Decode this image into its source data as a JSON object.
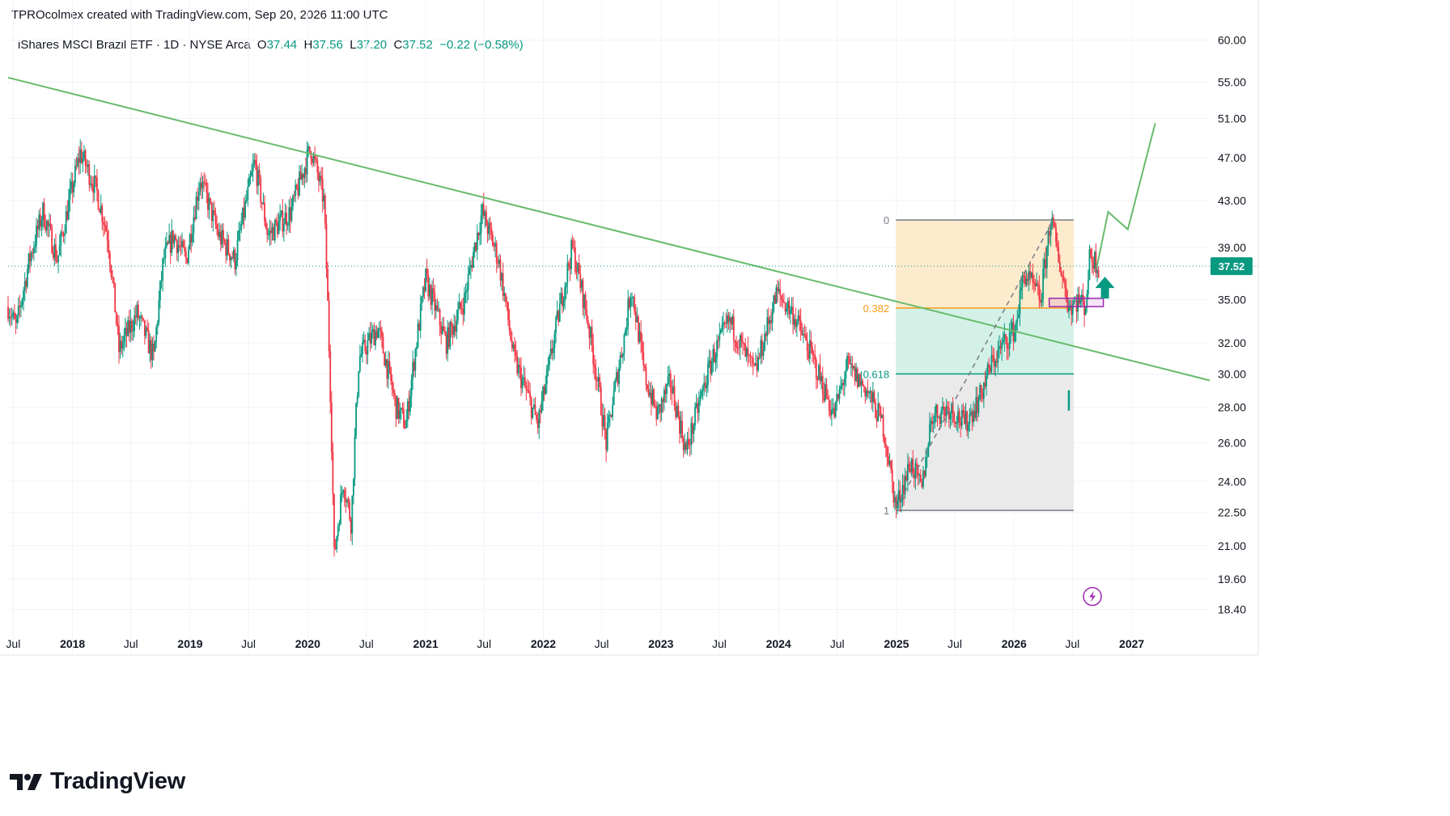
{
  "header": {
    "created_by": "TPROcolmex created with TradingView.com, Sep 20, 2026 11:00 UTC"
  },
  "legend": {
    "symbol": "iShares MSCI Brazil ETF · 1D · NYSE Arca",
    "o_label": "O",
    "open": "37.44",
    "h_label": "H",
    "high": "37.56",
    "l_label": "L",
    "low": "37.20",
    "c_label": "C",
    "close": "37.52",
    "change": "−0.22 (−0.58%)"
  },
  "footer": {
    "brand": "TradingView"
  },
  "colors": {
    "up": "#089981",
    "down": "#f23645",
    "trendline": "#66bb6a",
    "fib_top_fill": "#fde8c4",
    "fib_mid_fill": "#cdeee4",
    "fib_bottom_fill": "#e6e6e6",
    "fib_0382": "#f89a17",
    "fib_0618": "#089981",
    "purple": "#9c27b0"
  },
  "chart_data": {
    "type": "candlestick",
    "y_scale": "log",
    "ylim": [
      17.6,
      62
    ],
    "xlim": [
      "2017-06-15",
      "2027-08-31"
    ],
    "y_ticks": [
      "60.00",
      "55.00",
      "51.00",
      "47.00",
      "43.00",
      "39.00",
      "35.00",
      "32.00",
      "30.00",
      "28.00",
      "26.00",
      "24.00",
      "22.50",
      "21.00",
      "19.60",
      "18.40"
    ],
    "x_ticks": [
      {
        "date": "2017-07-01",
        "label": "Jul"
      },
      {
        "date": "2018-01-01",
        "label": "2018"
      },
      {
        "date": "2018-07-01",
        "label": "Jul"
      },
      {
        "date": "2019-01-01",
        "label": "2019"
      },
      {
        "date": "2019-07-01",
        "label": "Jul"
      },
      {
        "date": "2020-01-01",
        "label": "2020"
      },
      {
        "date": "2020-07-01",
        "label": "Jul"
      },
      {
        "date": "2021-01-01",
        "label": "2021"
      },
      {
        "date": "2021-07-01",
        "label": "Jul"
      },
      {
        "date": "2022-01-01",
        "label": "2022"
      },
      {
        "date": "2022-07-01",
        "label": "Jul"
      },
      {
        "date": "2023-01-01",
        "label": "2023"
      },
      {
        "date": "2023-07-01",
        "label": "Jul"
      },
      {
        "date": "2024-01-01",
        "label": "2024"
      },
      {
        "date": "2024-07-01",
        "label": "Jul"
      },
      {
        "date": "2025-01-01",
        "label": "2025"
      },
      {
        "date": "2025-07-01",
        "label": "Jul"
      },
      {
        "date": "2026-01-01",
        "label": "2026"
      },
      {
        "date": "2026-07-01",
        "label": "Jul"
      },
      {
        "date": "2027-01-01",
        "label": "2027"
      }
    ],
    "last_price": 37.52,
    "last_price_label": "37.52",
    "price_path": [
      [
        "2017-06-15",
        34.5
      ],
      [
        "2017-07-10",
        33.0
      ],
      [
        "2017-08-20",
        38.0
      ],
      [
        "2017-10-01",
        42.0
      ],
      [
        "2017-11-15",
        38.0
      ],
      [
        "2018-01-25",
        47.5
      ],
      [
        "2018-03-15",
        44.0
      ],
      [
        "2018-04-20",
        40.0
      ],
      [
        "2018-05-25",
        31.5
      ],
      [
        "2018-07-20",
        34.0
      ],
      [
        "2018-09-10",
        31.0
      ],
      [
        "2018-10-10",
        38.0
      ],
      [
        "2018-11-10",
        40.0
      ],
      [
        "2018-12-20",
        38.0
      ],
      [
        "2019-02-01",
        45.0
      ],
      [
        "2019-03-30",
        40.0
      ],
      [
        "2019-05-20",
        38.0
      ],
      [
        "2019-07-20",
        46.5
      ],
      [
        "2019-08-30",
        40.0
      ],
      [
        "2019-11-10",
        42.0
      ],
      [
        "2020-01-10",
        48.0
      ],
      [
        "2020-02-20",
        43.0
      ],
      [
        "2020-03-01",
        36.0
      ],
      [
        "2020-03-23",
        20.5
      ],
      [
        "2020-04-20",
        24.0
      ],
      [
        "2020-05-15",
        22.0
      ],
      [
        "2020-06-08",
        31.0
      ],
      [
        "2020-08-05",
        33.0
      ],
      [
        "2020-10-01",
        28.0
      ],
      [
        "2020-11-01",
        27.0
      ],
      [
        "2021-01-01",
        36.5
      ],
      [
        "2021-03-05",
        32.0
      ],
      [
        "2021-05-01",
        35.0
      ],
      [
        "2021-06-25",
        42.0
      ],
      [
        "2021-08-15",
        38.0
      ],
      [
        "2021-10-01",
        31.0
      ],
      [
        "2021-12-15",
        27.0
      ],
      [
        "2022-01-15",
        30.0
      ],
      [
        "2022-04-01",
        39.0
      ],
      [
        "2022-05-15",
        34.0
      ],
      [
        "2022-07-15",
        26.0
      ],
      [
        "2022-09-10",
        32.5
      ],
      [
        "2022-10-01",
        36.0
      ],
      [
        "2022-11-10",
        30.0
      ],
      [
        "2022-12-20",
        27.5
      ],
      [
        "2023-01-30",
        29.5
      ],
      [
        "2023-03-20",
        25.5
      ],
      [
        "2023-06-10",
        31.0
      ],
      [
        "2023-08-01",
        33.5
      ],
      [
        "2023-09-25",
        31.0
      ],
      [
        "2023-10-20",
        30.0
      ],
      [
        "2023-12-27",
        35.5
      ],
      [
        "2024-02-15",
        34.0
      ],
      [
        "2024-04-15",
        31.0
      ],
      [
        "2024-06-20",
        27.5
      ],
      [
        "2024-08-01",
        30.5
      ],
      [
        "2024-10-01",
        29.0
      ],
      [
        "2024-11-20",
        27.0
      ],
      [
        "2024-12-30",
        22.7
      ],
      [
        "2025-02-15",
        25.0
      ],
      [
        "2025-03-20",
        23.5
      ],
      [
        "2025-04-20",
        27.5
      ],
      [
        "2025-06-15",
        28.0
      ],
      [
        "2025-08-01",
        27.0
      ],
      [
        "2025-09-15",
        28.5
      ],
      [
        "2025-10-20",
        30.5
      ],
      [
        "2025-12-01",
        32.0
      ],
      [
        "2026-01-05",
        33.0
      ],
      [
        "2026-02-01",
        37.0
      ],
      [
        "2026-03-25",
        35.0
      ],
      [
        "2026-04-25",
        41.5
      ],
      [
        "2026-05-20",
        38.0
      ],
      [
        "2026-06-20",
        34.5
      ],
      [
        "2026-07-20",
        35.0
      ],
      [
        "2026-08-10",
        34.5
      ],
      [
        "2026-08-25",
        38.5
      ],
      [
        "2026-09-20",
        37.52
      ]
    ],
    "trendline": {
      "start": [
        "2017-06-15",
        55.5
      ],
      "end": [
        "2027-08-31",
        29.6
      ]
    },
    "fib_retracement": {
      "start_date": "2024-12-30",
      "end_date": "2026-07-05",
      "price_high": 41.3,
      "price_low": 22.6,
      "levels": [
        {
          "ratio": 0,
          "label": "0",
          "price": 41.3
        },
        {
          "ratio": 0.382,
          "label": "0.382",
          "price": 34.4
        },
        {
          "ratio": 0.618,
          "label": "0.618",
          "price": 30.0
        },
        {
          "ratio": 1,
          "label": "1",
          "price": 22.6
        }
      ]
    },
    "trend_path_dashed": [
      [
        "2024-12-30",
        22.7
      ],
      [
        "2026-05-01",
        41.2
      ]
    ],
    "projection": [
      [
        "2026-09-15",
        37.5
      ],
      [
        "2026-10-20",
        42.0
      ],
      [
        "2026-12-20",
        40.5
      ],
      [
        "2027-03-15",
        50.5
      ]
    ],
    "support_box": {
      "start": "2026-04-20",
      "end": "2026-10-05",
      "low": 34.5,
      "high": 35.1
    },
    "arrow_up": {
      "date": "2026-10-10",
      "price": 35.5
    },
    "marker": {
      "date": "2026-06-20",
      "low": 27.8,
      "high": 29.0
    },
    "event_icon": {
      "date": "2026-09-01",
      "price": 18.9
    }
  }
}
